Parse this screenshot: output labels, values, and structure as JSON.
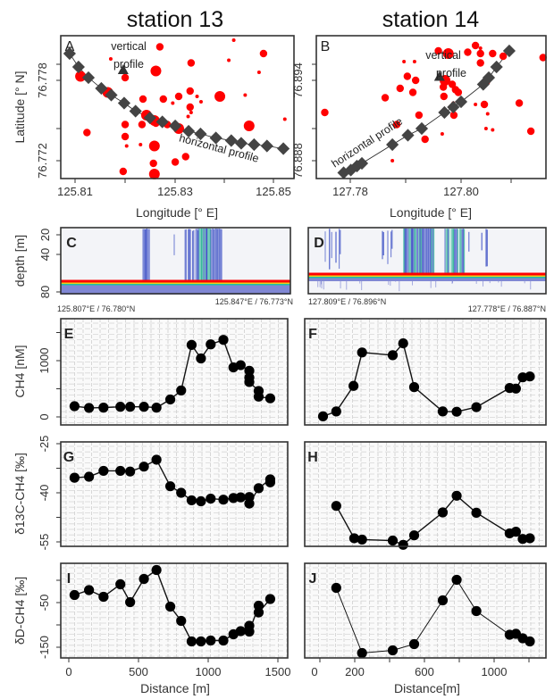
{
  "columns": [
    {
      "title": "station 13"
    },
    {
      "title": "station 14"
    }
  ],
  "axis_labels": {
    "latitude": "Latitude [° N]",
    "longitude": "Longitude [° E]",
    "depth": "depth [m]",
    "ch4": "CH4 [nM]",
    "d13c": "δ13C-CH4 [‰]",
    "dd": "δD-CH4 [‰]",
    "distance_left": "Distance [m]",
    "distance_right": "Distance[m]"
  },
  "colors": {
    "seep_points": "#ff0000",
    "profile_markers": "#444444",
    "line_points": "#000000",
    "echogram_plume": "#2a3fc0",
    "echogram_strong": "#20b090",
    "seafloor": "#ff0000"
  },
  "chart_data": [
    {
      "panel": "A",
      "type": "scatter",
      "xlabel": "Longitude [° E]",
      "ylabel": "Latitude [° N]",
      "xticks": [
        "125.81",
        "125.83",
        "125.85"
      ],
      "yticks": [
        "76.772",
        "76.778"
      ],
      "xlim": [
        125.807,
        125.854
      ],
      "ylim": [
        76.7707,
        76.7813
      ],
      "annotations": {
        "vertical_line1": "vertical",
        "vertical_line2": "profile",
        "horizontal": "horizontal profile"
      },
      "vertical_profile": [
        125.8197,
        76.7788
      ],
      "horizontal_profile": [
        [
          125.8089,
          76.78
        ],
        [
          125.8107,
          76.779
        ],
        [
          125.8127,
          76.7782
        ],
        [
          125.8153,
          76.7774
        ],
        [
          125.8173,
          76.7769
        ],
        [
          125.8199,
          76.7763
        ],
        [
          125.8222,
          76.7757
        ],
        [
          125.8251,
          76.7752
        ],
        [
          125.8276,
          76.7749
        ],
        [
          125.8302,
          76.7746
        ],
        [
          125.8329,
          76.7742
        ],
        [
          125.8353,
          76.774
        ],
        [
          125.8384,
          76.7737
        ],
        [
          125.8415,
          76.7735
        ],
        [
          125.8435,
          76.7733
        ],
        [
          125.8461,
          76.7732
        ],
        [
          125.8487,
          76.7731
        ],
        [
          125.852,
          76.7729
        ]
      ],
      "seeps": [
        [
          125.8111,
          76.7783,
          "l"
        ],
        [
          125.8172,
          76.7796,
          "s"
        ],
        [
          125.8201,
          76.7782,
          "m"
        ],
        [
          125.8271,
          76.7805,
          "m"
        ],
        [
          125.8263,
          76.7787,
          "l"
        ],
        [
          125.8334,
          76.7793,
          "m"
        ],
        [
          125.842,
          76.781,
          "s"
        ],
        [
          125.841,
          76.7795,
          "s"
        ],
        [
          125.848,
          76.78,
          "m"
        ],
        [
          125.8471,
          76.7786,
          "s"
        ],
        [
          125.8166,
          76.7771,
          "l"
        ],
        [
          125.8237,
          76.7766,
          "m"
        ],
        [
          125.8278,
          76.7766,
          "m"
        ],
        [
          125.8309,
          76.7768,
          "m"
        ],
        [
          125.8297,
          76.7763,
          "s"
        ],
        [
          125.8332,
          76.7772,
          "m"
        ],
        [
          125.8346,
          76.7768,
          "s"
        ],
        [
          125.8354,
          76.7764,
          "s"
        ],
        [
          125.8392,
          76.7768,
          "l"
        ],
        [
          125.8443,
          76.7769,
          "s"
        ],
        [
          125.8332,
          76.776,
          "m"
        ],
        [
          125.8334,
          76.7756,
          "s"
        ],
        [
          125.8224,
          76.7757,
          "s"
        ],
        [
          125.8244,
          76.7754,
          "l"
        ],
        [
          125.826,
          76.775,
          "l"
        ],
        [
          125.8263,
          76.7748,
          "m"
        ],
        [
          125.8235,
          76.7747,
          "m"
        ],
        [
          125.8201,
          76.7747,
          "m"
        ],
        [
          125.8286,
          76.7747,
          "m"
        ],
        [
          125.8309,
          76.7744,
          "l"
        ],
        [
          125.8328,
          76.7753,
          "s"
        ],
        [
          125.8451,
          76.7746,
          "l"
        ],
        [
          125.8523,
          76.7751,
          "s"
        ],
        [
          125.8124,
          76.7741,
          "m"
        ],
        [
          125.8201,
          76.7738,
          "m"
        ],
        [
          125.8204,
          76.7731,
          "s"
        ],
        [
          125.8232,
          76.7732,
          "s"
        ],
        [
          125.826,
          76.7731,
          "l"
        ],
        [
          125.8323,
          76.7723,
          "m"
        ],
        [
          125.8302,
          76.7719,
          "m"
        ],
        [
          125.8258,
          76.7718,
          "m"
        ],
        [
          125.8197,
          76.7712,
          "m"
        ],
        [
          125.826,
          76.771,
          "l"
        ]
      ]
    },
    {
      "panel": "B",
      "type": "scatter",
      "xlabel": "Longitude [° E]",
      "xticks": [
        "127.78",
        "127.80"
      ],
      "yticks": [
        "76.888",
        "76.894"
      ],
      "xlim": [
        127.7739,
        127.8153
      ],
      "ylim": [
        76.8867,
        76.8973
      ],
      "annotations": {
        "vertical_line1": "vertical",
        "vertical_line2": "profile",
        "horizontal": "horizontal profile"
      },
      "vertical_profile": [
        127.7961,
        76.8943
      ],
      "horizontal_profile": [
        [
          127.7788,
          76.8871
        ],
        [
          127.7801,
          76.8873
        ],
        [
          127.7812,
          76.8876
        ],
        [
          127.7821,
          76.8878
        ],
        [
          127.7876,
          76.8892
        ],
        [
          127.7904,
          76.8899
        ],
        [
          127.7929,
          76.8904
        ],
        [
          127.797,
          76.8916
        ],
        [
          127.7986,
          76.892
        ],
        [
          127.8,
          76.8924
        ],
        [
          127.804,
          76.8937
        ],
        [
          127.805,
          76.8942
        ],
        [
          127.8064,
          76.895
        ],
        [
          127.8087,
          76.8962
        ]
      ],
      "seeps": [
        [
          127.7754,
          76.8916,
          "m"
        ],
        [
          127.7863,
          76.8927,
          "m"
        ],
        [
          127.7884,
          76.8907,
          "m"
        ],
        [
          127.7876,
          76.888,
          "s"
        ],
        [
          127.7903,
          76.8943,
          "m"
        ],
        [
          127.7918,
          76.894,
          "m"
        ],
        [
          127.789,
          76.8934,
          "m"
        ],
        [
          127.7913,
          76.8931,
          "m"
        ],
        [
          127.7924,
          76.8914,
          "m"
        ],
        [
          127.7935,
          76.8896,
          "m"
        ],
        [
          127.7897,
          76.8954,
          "s"
        ],
        [
          127.7916,
          76.8954,
          "s"
        ],
        [
          127.7959,
          76.8962,
          "m"
        ],
        [
          127.7977,
          76.896,
          "l"
        ],
        [
          127.7971,
          76.894,
          "l"
        ],
        [
          127.7984,
          76.8937,
          "m"
        ],
        [
          127.7968,
          76.8935,
          "m"
        ],
        [
          127.7969,
          76.8928,
          "m"
        ],
        [
          127.799,
          76.8933,
          "m"
        ],
        [
          127.7995,
          76.8931,
          "m"
        ],
        [
          127.7987,
          76.8914,
          "m"
        ],
        [
          127.7986,
          76.8923,
          "s"
        ],
        [
          127.7966,
          76.89,
          "s"
        ],
        [
          127.8012,
          76.8961,
          "m"
        ],
        [
          127.8026,
          76.8966,
          "m"
        ],
        [
          127.8035,
          76.896,
          "m"
        ],
        [
          127.8035,
          76.8953,
          "m"
        ],
        [
          127.8046,
          76.8939,
          "m"
        ],
        [
          127.8042,
          76.8922,
          "m"
        ],
        [
          127.8057,
          76.896,
          "m"
        ],
        [
          127.8076,
          76.8958,
          "m"
        ],
        [
          127.8148,
          76.8957,
          "m"
        ],
        [
          127.8105,
          76.8923,
          "m"
        ],
        [
          127.8126,
          76.8902,
          "m"
        ],
        [
          127.8026,
          76.8922,
          "s"
        ],
        [
          127.8048,
          76.8915,
          "s"
        ],
        [
          127.8045,
          76.8904,
          "s"
        ],
        [
          127.8057,
          76.8903,
          "s"
        ],
        [
          127.8035,
          76.8964,
          "s"
        ]
      ]
    },
    {
      "panel": "C",
      "type": "heatmap",
      "ylabel": "depth [m]",
      "yticks": [
        "20",
        "40",
        "80"
      ],
      "ylim": [
        20,
        80
      ],
      "start_label": "125.807°E / 76.780°N",
      "end_label": "125.847°E / 76.773°N",
      "seafloor_depth": 68
    },
    {
      "panel": "D",
      "type": "heatmap",
      "ylim": [
        20,
        80
      ],
      "start_label": "127.809°E / 76.896°N",
      "end_label": "127.778°E / 76.887°N",
      "seafloor_depth": 61
    },
    {
      "panel": "E",
      "type": "line",
      "ylabel": "CH4 [nM]",
      "yticks": [
        "0",
        "1000"
      ],
      "xlim": [
        0,
        1500
      ],
      "x": [
        41,
        145,
        249,
        370,
        440,
        539,
        629,
        728,
        806,
        881,
        948,
        1018,
        1109,
        1181,
        1233,
        1295,
        1295,
        1295,
        1362,
        1362,
        1445
      ],
      "y": [
        190,
        160,
        165,
        180,
        180,
        180,
        165,
        310,
        470,
        1280,
        1040,
        1290,
        1370,
        880,
        920,
        820,
        700,
        620,
        460,
        360,
        330
      ]
    },
    {
      "panel": "F",
      "type": "line",
      "x": [
        18,
        94,
        193,
        242,
        418,
        478,
        541,
        705,
        785,
        898,
        1089,
        1125,
        1164,
        1205
      ],
      "y": [
        10,
        97,
        551,
        1146,
        1097,
        1308,
        530,
        97,
        92,
        173,
        514,
        503,
        703,
        719
      ]
    },
    {
      "panel": "G",
      "type": "line",
      "ylabel": "δ13C-CH4 [‰]",
      "yticks": [
        "-25",
        "-40",
        "-55"
      ],
      "x": [
        41,
        145,
        249,
        370,
        440,
        539,
        629,
        728,
        806,
        881,
        948,
        1018,
        1109,
        1181,
        1233,
        1295,
        1295,
        1362,
        1445,
        1445
      ],
      "y": [
        -35.4,
        -35.1,
        -33.3,
        -33.3,
        -33.5,
        -32.0,
        -29.9,
        -38.0,
        -40.0,
        -42.3,
        -42.6,
        -41.8,
        -42.1,
        -41.6,
        -41.4,
        -41.3,
        -43.3,
        -38.6,
        -35.9,
        -36.8
      ]
    },
    {
      "panel": "H",
      "type": "line",
      "x": [
        94,
        197,
        242,
        418,
        478,
        541,
        705,
        785,
        898,
        1089,
        1125,
        1164,
        1205
      ],
      "y": [
        -44.0,
        -53.9,
        -54.3,
        -54.6,
        -55.9,
        -53.0,
        -46.0,
        -40.9,
        -46.1,
        -52.4,
        -51.9,
        -54.1,
        -53.9
      ]
    },
    {
      "panel": "I",
      "type": "line",
      "ylabel": "δD-CH4 [‰]",
      "yticks": [
        "-50",
        "-150"
      ],
      "xlabel": "Distance [m]",
      "xticks": [
        "0",
        "500",
        "1000",
        "1500"
      ],
      "x": [
        41,
        145,
        249,
        370,
        440,
        539,
        629,
        728,
        806,
        881,
        948,
        1018,
        1109,
        1181,
        1233,
        1295,
        1295,
        1362,
        1362,
        1445
      ],
      "y": [
        -33,
        -22,
        -37,
        -9,
        -49,
        3,
        23,
        -59,
        -91,
        -137,
        -137,
        -135,
        -135,
        -121,
        -114,
        -102,
        -115,
        -57,
        -72,
        -42
      ]
    },
    {
      "panel": "J",
      "type": "line",
      "xlabel": "Distance[m]",
      "xticks": [
        "0",
        "200",
        "600",
        "1000"
      ],
      "x": [
        94,
        242,
        418,
        541,
        705,
        785,
        898,
        1089,
        1125,
        1164,
        1205
      ],
      "y": [
        -17,
        -163,
        -157,
        -143,
        -45,
        1,
        -69,
        -122,
        -120,
        -130,
        -137
      ]
    }
  ]
}
